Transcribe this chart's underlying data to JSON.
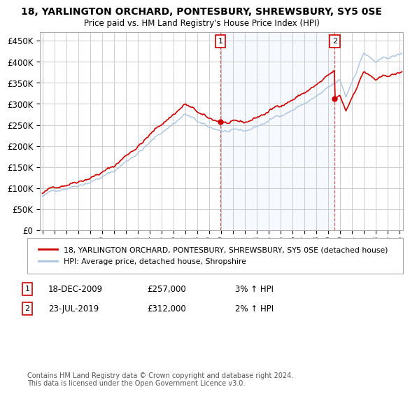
{
  "title": "18, YARLINGTON ORCHARD, PONTESBURY, SHREWSBURY, SY5 0SE",
  "subtitle": "Price paid vs. HM Land Registry's House Price Index (HPI)",
  "ylabel_ticks": [
    "£0",
    "£50K",
    "£100K",
    "£150K",
    "£200K",
    "£250K",
    "£300K",
    "£350K",
    "£400K",
    "£450K"
  ],
  "ytick_vals": [
    0,
    50000,
    100000,
    150000,
    200000,
    250000,
    300000,
    350000,
    400000,
    450000
  ],
  "ylim": [
    0,
    470000
  ],
  "xlim_start": 1994.8,
  "xlim_end": 2025.3,
  "hpi_color": "#aac4e0",
  "price_color": "#cc0000",
  "bg_color": "#ffffff",
  "grid_color": "#cccccc",
  "shade_color": "#ddeeff",
  "purchase1_x": 2009.96,
  "purchase1_y": 257000,
  "purchase1_label": "1",
  "purchase2_x": 2019.55,
  "purchase2_y": 312000,
  "purchase2_label": "2",
  "legend_line1": "18, YARLINGTON ORCHARD, PONTESBURY, SHREWSBURY, SY5 0SE (detached house)",
  "legend_line2": "HPI: Average price, detached house, Shropshire",
  "note1_label": "1",
  "note1_date": "18-DEC-2009",
  "note1_price": "£257,000",
  "note1_hpi": "3% ↑ HPI",
  "note2_label": "2",
  "note2_date": "23-JUL-2019",
  "note2_price": "£312,000",
  "note2_hpi": "2% ↑ HPI",
  "footer": "Contains HM Land Registry data © Crown copyright and database right 2024.\nThis data is licensed under the Open Government Licence v3.0.",
  "xtick_years": [
    1995,
    1996,
    1997,
    1998,
    1999,
    2000,
    2001,
    2002,
    2003,
    2004,
    2005,
    2006,
    2007,
    2008,
    2009,
    2010,
    2011,
    2012,
    2013,
    2014,
    2015,
    2016,
    2017,
    2018,
    2019,
    2020,
    2021,
    2022,
    2023,
    2024,
    2025
  ]
}
